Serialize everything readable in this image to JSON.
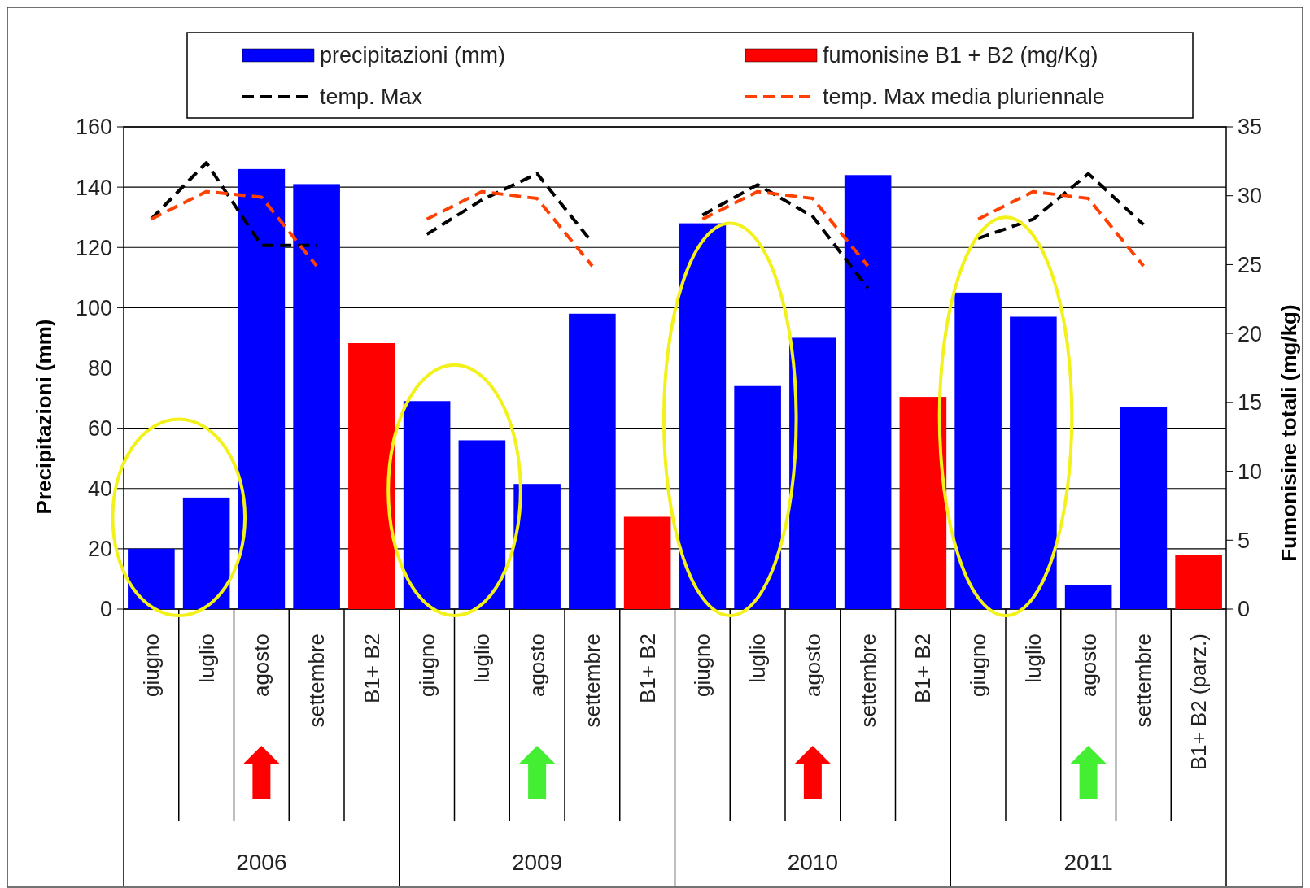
{
  "chart_data": {
    "type": "bar",
    "ylabel": "Precipitazioni (mm)",
    "y2label": "Fumonisine totali (mg/kg)",
    "categories": [
      "giugno",
      "luglio",
      "agosto",
      "settembre",
      "B1+ B2",
      "giugno",
      "luglio",
      "agosto",
      "settembre",
      "B1+ B2",
      "giugno",
      "luglio",
      "agosto",
      "settembre",
      "B1+ B2",
      "giugno",
      "luglio",
      "agosto",
      "settembre",
      "B1+ B2 (parz.)"
    ],
    "series": [
      {
        "name": "precipitazioni  (mm)",
        "color": "#0000ff",
        "values": [
          20,
          37,
          146,
          141,
          null,
          69,
          56,
          41.5,
          98,
          null,
          128,
          74,
          90,
          144,
          null,
          105,
          97,
          8,
          67,
          null
        ]
      },
      {
        "name": "fumonisine B1 + B2 (mg/Kg)",
        "axis": "y2",
        "color": "#ff0000",
        "values": [
          null,
          null,
          null,
          null,
          19.3,
          null,
          null,
          null,
          null,
          6.7,
          null,
          null,
          null,
          null,
          15.4,
          null,
          null,
          null,
          null,
          3.9
        ]
      },
      {
        "name": "temp. Max",
        "type": "line",
        "axis": "y2",
        "color": "#000000",
        "values": [
          28.3,
          32.4,
          26.4,
          26.4,
          null,
          27.2,
          29.7,
          31.6,
          26.6,
          null,
          28.6,
          30.8,
          28.5,
          23.3,
          null,
          26.9,
          28.3,
          31.6,
          27.9,
          null
        ]
      },
      {
        "name": "temp. Max media pluriennale",
        "type": "line",
        "axis": "y2",
        "color": "#ff4000",
        "values": [
          28.3,
          30.3,
          29.9,
          24.9,
          null,
          28.3,
          30.3,
          29.8,
          24.9,
          null,
          28.3,
          30.3,
          29.8,
          24.9,
          null,
          28.3,
          30.3,
          29.8,
          24.9,
          null
        ]
      }
    ],
    "ylim": [
      0,
      160
    ],
    "yticks": [
      0,
      20,
      40,
      60,
      80,
      100,
      120,
      140,
      160
    ],
    "y2lim": [
      0,
      35
    ],
    "y2ticks": [
      0,
      5,
      10,
      15,
      20,
      25,
      30,
      35
    ],
    "annotations": [
      "2006",
      "2009",
      "2010",
      "2011"
    ],
    "grid": "y",
    "legend": "top",
    "line_style": "dashed"
  }
}
